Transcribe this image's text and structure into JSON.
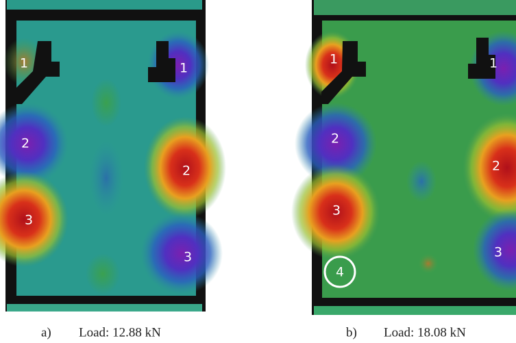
{
  "panels": [
    {
      "label": "a)",
      "caption": "Load: 12.88 kN",
      "markers": [
        "1",
        "1",
        "2",
        "2",
        "3",
        "3"
      ]
    },
    {
      "label": "b)",
      "caption": "Load: 18.08 kN",
      "markers": [
        "1",
        "1",
        "2",
        "2",
        "3",
        "3",
        "4"
      ]
    }
  ]
}
